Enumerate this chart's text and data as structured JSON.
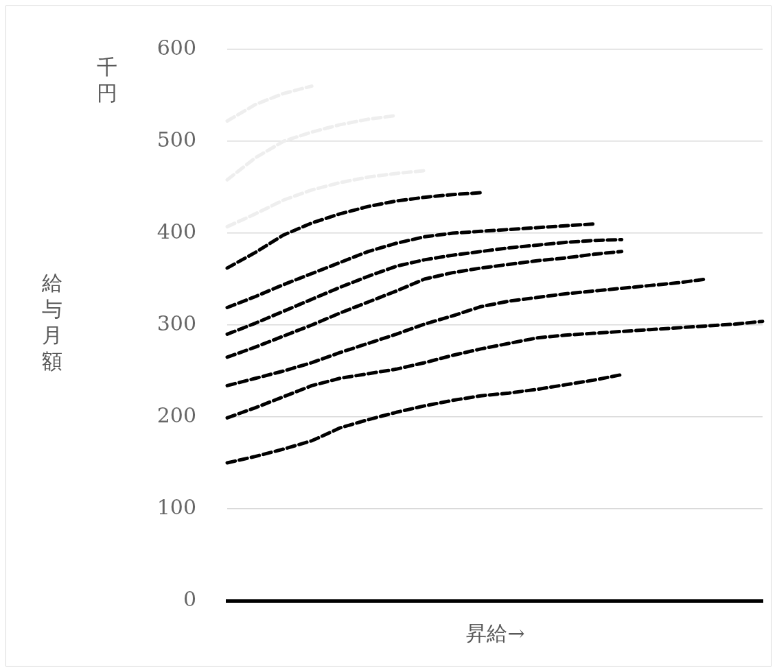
{
  "chart_data": {
    "type": "line",
    "xlabel": "昇給→",
    "ylabel": "給与月額",
    "annotations": [
      "千円"
    ],
    "categories": [
      null,
      null,
      null,
      null,
      null,
      null,
      null,
      null,
      null,
      null,
      null,
      null,
      null,
      null,
      null,
      null,
      null,
      null,
      null,
      null
    ],
    "ylim": [
      0,
      600
    ],
    "yticks": [
      0,
      100,
      200,
      300,
      400,
      500,
      600
    ],
    "grid": "y",
    "legend": false,
    "tick_labels": "y",
    "marker": "none",
    "line_style": "dashed",
    "series": [
      {
        "color": "#eeeeee",
        "values": [
          522,
          540,
          552,
          560,
          null,
          null,
          null,
          null,
          null,
          null,
          null,
          null,
          null,
          null,
          null,
          null,
          null,
          null,
          null,
          null
        ]
      },
      {
        "color": "#eeeeee",
        "values": [
          458,
          482,
          500,
          510,
          518,
          524,
          528,
          null,
          null,
          null,
          null,
          null,
          null,
          null,
          null,
          null,
          null,
          null,
          null,
          null
        ]
      },
      {
        "color": "#eeeeee",
        "values": [
          407,
          421,
          436,
          447,
          455,
          461,
          465,
          468,
          null,
          null,
          null,
          null,
          null,
          null,
          null,
          null,
          null,
          null,
          null,
          null
        ]
      },
      {
        "color": "#000000",
        "values": [
          362,
          379,
          398,
          411,
          421,
          429,
          435,
          439,
          442,
          444,
          null,
          null,
          null,
          null,
          null,
          null,
          null,
          null,
          null,
          null
        ]
      },
      {
        "color": "#000000",
        "values": [
          319,
          331,
          344,
          356,
          368,
          380,
          389,
          396,
          400,
          402,
          404,
          406,
          408,
          410,
          null,
          null,
          null,
          null,
          null,
          null
        ]
      },
      {
        "color": "#000000",
        "values": [
          290,
          302,
          315,
          328,
          341,
          353,
          364,
          371,
          376,
          380,
          384,
          387,
          390,
          392,
          393,
          null,
          null,
          null,
          null,
          null
        ]
      },
      {
        "color": "#000000",
        "values": [
          265,
          276,
          288,
          300,
          313,
          325,
          337,
          350,
          357,
          362,
          366,
          370,
          373,
          377,
          380,
          null,
          null,
          null,
          null,
          null
        ]
      },
      {
        "color": "#000000",
        "values": [
          234,
          242,
          250,
          259,
          270,
          280,
          290,
          301,
          310,
          320,
          326,
          330,
          334,
          337,
          340,
          343,
          346,
          350,
          null,
          null
        ]
      },
      {
        "color": "#000000",
        "values": [
          199,
          210,
          222,
          234,
          242,
          247,
          252,
          259,
          267,
          274,
          280,
          286,
          289,
          291,
          293,
          295,
          297,
          299,
          301,
          304
        ]
      },
      {
        "color": "#000000",
        "values": [
          150,
          157,
          165,
          174,
          188,
          197,
          205,
          212,
          218,
          223,
          226,
          230,
          235,
          240,
          246,
          null,
          null,
          null,
          null,
          null
        ]
      }
    ]
  }
}
